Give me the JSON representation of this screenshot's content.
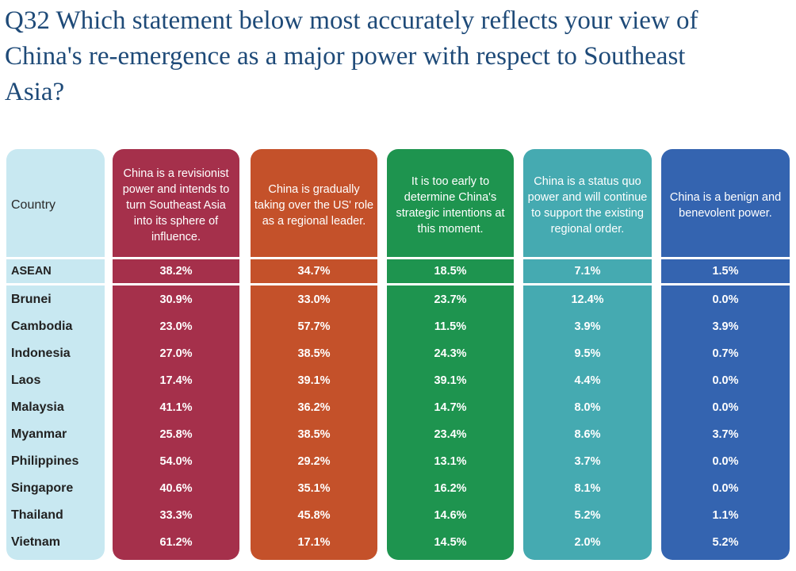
{
  "title": "Q32 Which statement below most accurately reflects your view of China's re-emergence as a major power with respect to Southeast Asia?",
  "table": {
    "columns": [
      "Country",
      "China is a revisionist power and intends to turn Southeast Asia into its sphere of influence.",
      "China is gradually taking over the US' role as a regional leader.",
      "It is too early to determine China's strategic intentions at this moment.",
      "China is a status quo power and will continue to support the existing regional order.",
      "China is a benign and benevolent power."
    ],
    "summary": [
      "ASEAN",
      "38.2%",
      "34.7%",
      "18.5%",
      "7.1%",
      "1.5%"
    ],
    "rows": [
      [
        "Brunei",
        "30.9%",
        "33.0%",
        "23.7%",
        "12.4%",
        "0.0%"
      ],
      [
        "Cambodia",
        "23.0%",
        "57.7%",
        "11.5%",
        "3.9%",
        "3.9%"
      ],
      [
        "Indonesia",
        "27.0%",
        "38.5%",
        "24.3%",
        "9.5%",
        "0.7%"
      ],
      [
        "Laos",
        "17.4%",
        "39.1%",
        "39.1%",
        "4.4%",
        "0.0%"
      ],
      [
        "Malaysia",
        "41.1%",
        "36.2%",
        "14.7%",
        "8.0%",
        "0.0%"
      ],
      [
        "Myanmar",
        "25.8%",
        "38.5%",
        "23.4%",
        "8.6%",
        "3.7%"
      ],
      [
        "Philippines",
        "54.0%",
        "29.2%",
        "13.1%",
        "3.7%",
        "0.0%"
      ],
      [
        "Singapore",
        "40.6%",
        "35.1%",
        "16.2%",
        "8.1%",
        "0.0%"
      ],
      [
        "Thailand",
        "33.3%",
        "45.8%",
        "14.6%",
        "5.2%",
        "1.1%"
      ],
      [
        "Vietnam",
        "61.2%",
        "17.1%",
        "14.5%",
        "2.0%",
        "5.2%"
      ]
    ]
  }
}
